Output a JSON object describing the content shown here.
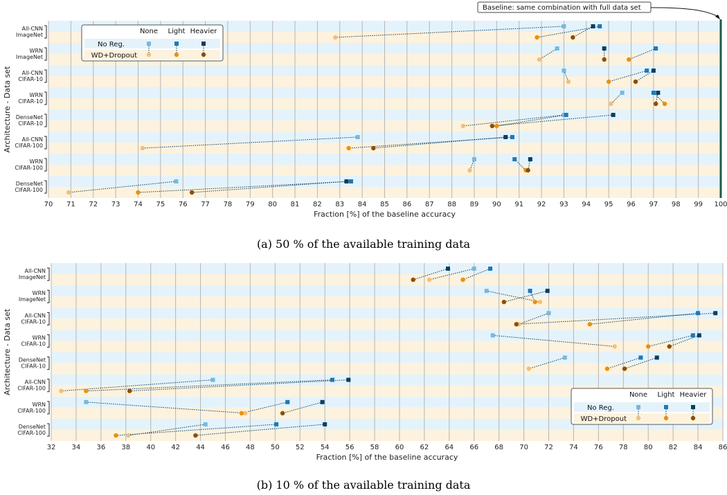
{
  "figure": {
    "captions": [
      "(a) 50 % of the available training data",
      "(b) 10 % of the available training data"
    ]
  },
  "colors": {
    "stripe_noreg": "#e4f3fb",
    "stripe_wd": "#fdf2dd",
    "grid": "#b5b5b5",
    "noreg": [
      "#7ab8dc",
      "#1f78b4",
      "#0b3f5e"
    ],
    "wd": [
      "#eec17e",
      "#e69212",
      "#8a4e0c"
    ],
    "baseline_line": "#1d5b48"
  },
  "chart_data": [
    {
      "type": "scatter",
      "title": "(a) 50 % of the available training data",
      "xlabel": "Fraction [%] of the baseline accuracy",
      "ylabel": "Architecture - Data set",
      "xlim": [
        70,
        100
      ],
      "xticks": [
        70,
        71,
        72,
        73,
        74,
        75,
        76,
        77,
        78,
        79,
        80,
        81,
        82,
        83,
        84,
        85,
        86,
        87,
        88,
        89,
        90,
        91,
        92,
        93,
        94,
        95,
        96,
        97,
        98,
        99,
        100
      ],
      "grid": true,
      "legend": {
        "placement": "top-left",
        "columns": [
          "None",
          "Light",
          "Heavier"
        ],
        "rows": [
          "No Reg.",
          "WD+Dropout"
        ]
      },
      "baseline": {
        "x": 100,
        "label": "Baseline: same combination with full data set"
      },
      "categories": [
        {
          "line1": "All-CNN",
          "line2": "ImageNet"
        },
        {
          "line1": "WRN",
          "line2": "ImageNet"
        },
        {
          "line1": "All-CNN",
          "line2": "CIFAR-10"
        },
        {
          "line1": "WRN",
          "line2": "CIFAR-10"
        },
        {
          "line1": "DenseNet",
          "line2": "CIFAR-10"
        },
        {
          "line1": "All-CNN",
          "line2": "CIFAR-100"
        },
        {
          "line1": "WRN",
          "line2": "CIFAR-100"
        },
        {
          "line1": "DenseNet",
          "line2": "CIFAR-100"
        }
      ],
      "series": [
        {
          "name": "No Reg. / None",
          "group": "noreg",
          "level": 0,
          "values": [
            93.0,
            92.7,
            93.0,
            95.6,
            93.0,
            83.8,
            89.0,
            75.7
          ]
        },
        {
          "name": "No Reg. / Light",
          "group": "noreg",
          "level": 1,
          "values": [
            94.6,
            97.1,
            96.7,
            97.0,
            93.1,
            90.7,
            90.8,
            83.5
          ]
        },
        {
          "name": "No Reg. / Heavier",
          "group": "noreg",
          "level": 2,
          "values": [
            94.3,
            94.8,
            97.0,
            97.2,
            95.2,
            90.4,
            91.5,
            83.3
          ]
        },
        {
          "name": "WD+Dropout / None",
          "group": "wd",
          "level": 0,
          "values": [
            82.8,
            91.9,
            93.2,
            95.1,
            88.5,
            74.2,
            88.8,
            70.9
          ]
        },
        {
          "name": "WD+Dropout / Light",
          "group": "wd",
          "level": 1,
          "values": [
            91.8,
            95.9,
            95.0,
            97.5,
            90.0,
            83.4,
            91.3,
            74.0
          ]
        },
        {
          "name": "WD+Dropout / Heavier",
          "group": "wd",
          "level": 2,
          "values": [
            93.4,
            94.8,
            96.2,
            97.1,
            89.8,
            84.5,
            91.4,
            76.4
          ]
        }
      ]
    },
    {
      "type": "scatter",
      "title": "(b) 10 % of the available training data",
      "xlabel": "Fraction [%] of the baseline accuracy",
      "ylabel": "Architecture - Data set",
      "xlim": [
        32,
        86
      ],
      "xticks": [
        32,
        34,
        36,
        38,
        40,
        42,
        44,
        46,
        48,
        50,
        52,
        54,
        56,
        58,
        60,
        62,
        64,
        66,
        68,
        70,
        72,
        74,
        76,
        78,
        80,
        82,
        84,
        86
      ],
      "grid": true,
      "legend": {
        "placement": "bottom-right",
        "columns": [
          "None",
          "Light",
          "Heavier"
        ],
        "rows": [
          "No Reg.",
          "WD+Dropout"
        ]
      },
      "categories": [
        {
          "line1": "All-CNN",
          "line2": "ImageNet"
        },
        {
          "line1": "WRN",
          "line2": "ImageNet"
        },
        {
          "line1": "All-CNN",
          "line2": "CIFAR-10"
        },
        {
          "line1": "WRN",
          "line2": "CIFAR-10"
        },
        {
          "line1": "DenseNet",
          "line2": "CIFAR-10"
        },
        {
          "line1": "All-CNN",
          "line2": "CIFAR-100"
        },
        {
          "line1": "WRN",
          "line2": "CIFAR-100"
        },
        {
          "line1": "DenseNet",
          "line2": "CIFAR-100"
        }
      ],
      "series": [
        {
          "name": "No Reg. / None",
          "group": "noreg",
          "level": 0,
          "values": [
            66.0,
            67.0,
            72.0,
            67.5,
            73.3,
            45.0,
            34.8,
            44.4
          ]
        },
        {
          "name": "No Reg. / Light",
          "group": "noreg",
          "level": 1,
          "values": [
            67.3,
            70.5,
            84.0,
            83.6,
            79.4,
            54.6,
            51.0,
            50.1
          ]
        },
        {
          "name": "No Reg. / Heavier",
          "group": "noreg",
          "level": 2,
          "values": [
            63.9,
            71.9,
            85.4,
            84.1,
            80.7,
            55.9,
            53.8,
            54.0
          ]
        },
        {
          "name": "WD+Dropout / None",
          "group": "wd",
          "level": 0,
          "values": [
            62.4,
            71.3,
            69.6,
            77.3,
            70.4,
            32.8,
            47.6,
            38.2
          ]
        },
        {
          "name": "WD+Dropout / Light",
          "group": "wd",
          "level": 1,
          "values": [
            65.1,
            70.9,
            75.3,
            80.0,
            76.7,
            34.8,
            47.3,
            37.2
          ]
        },
        {
          "name": "WD+Dropout / Heavier",
          "group": "wd",
          "level": 2,
          "values": [
            61.1,
            68.4,
            69.4,
            81.7,
            78.1,
            38.3,
            50.6,
            43.6
          ]
        }
      ]
    }
  ]
}
